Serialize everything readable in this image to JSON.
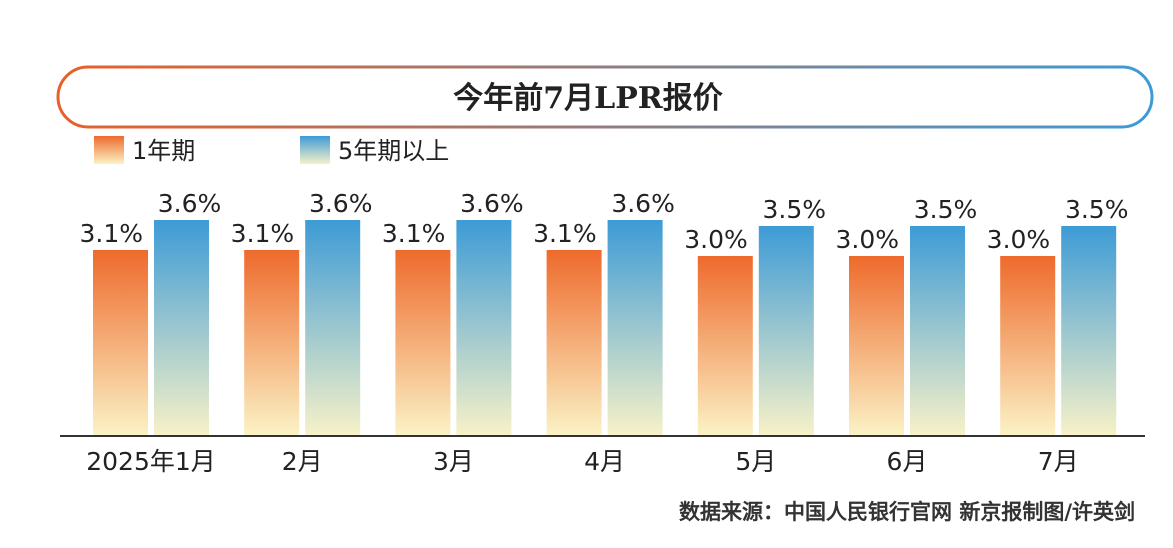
{
  "chart_data": {
    "type": "bar",
    "title": "今年前7月LPR报价",
    "categories": [
      "2025年1月",
      "2月",
      "3月",
      "4月",
      "5月",
      "6月",
      "7月"
    ],
    "series": [
      {
        "name": "1年期",
        "values": [
          3.1,
          3.1,
          3.1,
          3.1,
          3.0,
          3.0,
          3.0
        ],
        "labels": [
          "3.1%",
          "3.1%",
          "3.1%",
          "3.1%",
          "3.0%",
          "3.0%",
          "3.0%"
        ],
        "color_top": "#ee6a2c",
        "color_bottom": "#fbf3c6"
      },
      {
        "name": "5年期以上",
        "values": [
          3.6,
          3.6,
          3.6,
          3.6,
          3.5,
          3.5,
          3.5
        ],
        "labels": [
          "3.6%",
          "3.6%",
          "3.6%",
          "3.6%",
          "3.5%",
          "3.5%",
          "3.5%"
        ],
        "color_top": "#3d9bd6",
        "color_bottom": "#f8f2c8"
      }
    ],
    "xlabel": "",
    "ylabel": "",
    "ylim": [
      0,
      3.6
    ],
    "grid": false,
    "legend": "top-left"
  },
  "source": "数据来源：中国人民银行官网  新京报制图/许英剑",
  "colors": {
    "title_border_left": "#e8602a",
    "title_border_right": "#3d9bd6",
    "axis": "#333333"
  }
}
